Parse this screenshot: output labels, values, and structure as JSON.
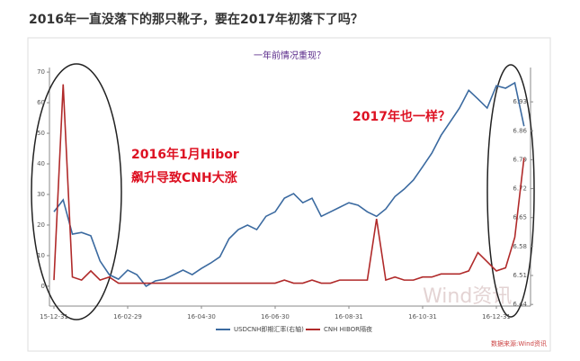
{
  "header": {
    "title": "2016年一直没落下的那只靴子，要在2017年初落下了吗？"
  },
  "chart_data": {
    "type": "line",
    "title": "一年前情况重现？",
    "annotations": [
      "2016年1月Hibor",
      "飙升导致CNH大涨",
      "2017年也一样？"
    ],
    "source": "数据来源:Wind资讯",
    "watermark": "Wind资讯",
    "categories": [
      "15-12-31",
      null,
      null,
      null,
      null,
      null,
      null,
      null,
      "16-02-29",
      null,
      null,
      null,
      null,
      null,
      null,
      null,
      "16-04-30",
      null,
      null,
      null,
      null,
      null,
      null,
      null,
      "16-06-30",
      null,
      null,
      null,
      null,
      null,
      null,
      null,
      "16-08-31",
      null,
      null,
      null,
      null,
      null,
      null,
      null,
      "16-10-31",
      null,
      null,
      null,
      null,
      null,
      null,
      null,
      "16-12-31",
      null,
      null,
      null
    ],
    "series": [
      {
        "name": "USDCNH即期汇率(右轴)",
        "color": "#3b6aa0",
        "axis": "y2",
        "values": [
          6.664,
          6.693,
          6.61,
          6.614,
          6.606,
          6.545,
          6.512,
          6.501,
          6.523,
          6.512,
          6.484,
          6.497,
          6.501,
          6.512,
          6.523,
          6.512,
          6.527,
          6.54,
          6.555,
          6.599,
          6.621,
          6.632,
          6.621,
          6.653,
          6.664,
          6.697,
          6.708,
          6.686,
          6.697,
          6.653,
          6.664,
          6.675,
          6.686,
          6.68,
          6.664,
          6.653,
          6.671,
          6.701,
          6.719,
          6.741,
          6.773,
          6.806,
          6.849,
          6.882,
          6.915,
          6.958,
          6.937,
          6.915,
          6.969,
          6.963,
          6.976,
          6.871
        ]
      },
      {
        "name": "CNH HIBOR隔夜",
        "color": "#b02a2a",
        "values": [
          2,
          66,
          3,
          2,
          5,
          2,
          3,
          1,
          1,
          1,
          1,
          1,
          1,
          1,
          1,
          1,
          1,
          1,
          1,
          1,
          1,
          1,
          1,
          1,
          1,
          2,
          1,
          1,
          2,
          1,
          1,
          2,
          2,
          2,
          2,
          22,
          2,
          3,
          2,
          2,
          3,
          3,
          4,
          4,
          4,
          5,
          11,
          8,
          5,
          6,
          16,
          42
        ]
      }
    ],
    "ylim": [
      -6.5,
      71.5
    ],
    "yticks": [
      0,
      10,
      20,
      30,
      40,
      50,
      60,
      70
    ],
    "y2lim": [
      6.436,
      7.013
    ],
    "y2ticks": [
      6.44,
      6.51,
      6.58,
      6.65,
      6.72,
      6.79,
      6.86,
      6.93
    ],
    "legend": "bottom"
  }
}
